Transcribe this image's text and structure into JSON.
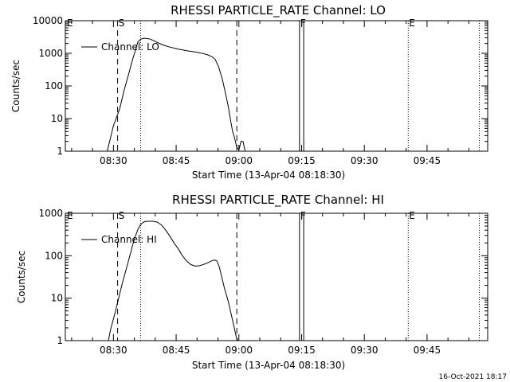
{
  "footer": {
    "timestamp": "16-Oct-2021 18:17"
  },
  "chart_data": [
    {
      "type": "line",
      "title": "RHESSI PARTICLE_RATE Channel: LO",
      "xlabel": "Start Time (13-Apr-04 08:18:30)",
      "ylabel": "Counts/sec",
      "yscale": "log",
      "ylim": [
        1,
        10000
      ],
      "xlim_minutes": [
        0,
        101
      ],
      "x_ticks": [
        {
          "label": "08:30",
          "t": 11.5
        },
        {
          "label": "08:45",
          "t": 26.5
        },
        {
          "label": "09:00",
          "t": 41.5
        },
        {
          "label": "09:15",
          "t": 56.5
        },
        {
          "label": "09:30",
          "t": 71.5
        },
        {
          "label": "09:45",
          "t": 86.5
        }
      ],
      "y_ticks": [
        {
          "label": "1",
          "v": 1
        },
        {
          "label": "10",
          "v": 10
        },
        {
          "label": "100",
          "v": 100
        },
        {
          "label": "1000",
          "v": 1000
        },
        {
          "label": "10000",
          "v": 10000
        }
      ],
      "markers": [
        {
          "label": "E",
          "t": 0.2
        },
        {
          "label": "S",
          "t": 12.5
        },
        {
          "label": "F",
          "t": 56.0
        },
        {
          "label": "E",
          "t": 82.0
        }
      ],
      "dashed_lines": [
        12.5,
        41.0
      ],
      "dotted_lines": [
        18.0,
        82.0,
        99.0
      ],
      "solid_lines": [
        56.0,
        57.0
      ],
      "legend": {
        "label": "Channel: LO",
        "placement": "top-left"
      },
      "series": [
        {
          "name": "Channel: LO",
          "x": [
            10.0,
            10.4,
            11.5,
            13,
            14,
            15,
            16,
            16.8,
            17.3,
            18,
            18.8,
            20,
            21,
            22,
            23,
            24,
            25,
            26,
            27,
            28,
            29,
            30,
            31,
            32,
            33,
            34,
            35,
            35.8,
            36.6,
            37.5,
            38.3,
            39,
            39.5,
            40,
            40.5,
            41,
            41.5,
            42,
            42.5,
            43
          ],
          "y": [
            1,
            1.6,
            6,
            20,
            70,
            200,
            600,
            1300,
            2200,
            2700,
            2900,
            2800,
            2500,
            2150,
            1900,
            1700,
            1550,
            1450,
            1350,
            1280,
            1200,
            1150,
            1100,
            1040,
            980,
            900,
            800,
            660,
            400,
            170,
            60,
            22,
            9,
            4,
            2.5,
            1.3,
            1.1,
            2,
            2,
            1
          ]
        }
      ]
    },
    {
      "type": "line",
      "title": "RHESSI PARTICLE_RATE Channel: HI",
      "xlabel": "Start Time (13-Apr-04 08:18:30)",
      "ylabel": "Counts/sec",
      "yscale": "log",
      "ylim": [
        1,
        1000
      ],
      "xlim_minutes": [
        0,
        101
      ],
      "x_ticks": [
        {
          "label": "08:30",
          "t": 11.5
        },
        {
          "label": "08:45",
          "t": 26.5
        },
        {
          "label": "09:00",
          "t": 41.5
        },
        {
          "label": "09:15",
          "t": 56.5
        },
        {
          "label": "09:30",
          "t": 71.5
        },
        {
          "label": "09:45",
          "t": 86.5
        }
      ],
      "y_ticks": [
        {
          "label": "1",
          "v": 1
        },
        {
          "label": "10",
          "v": 10
        },
        {
          "label": "100",
          "v": 100
        },
        {
          "label": "1000",
          "v": 1000
        }
      ],
      "markers": [
        {
          "label": "E",
          "t": 0.2
        },
        {
          "label": "S",
          "t": 12.5
        },
        {
          "label": "F",
          "t": 56.0
        },
        {
          "label": "E",
          "t": 82.0
        }
      ],
      "dashed_lines": [
        12.5,
        41.0
      ],
      "dotted_lines": [
        18.0,
        82.0,
        99.0
      ],
      "solid_lines": [
        56.0,
        57.0
      ],
      "legend": {
        "label": "Channel: HI",
        "placement": "top-left"
      },
      "series": [
        {
          "name": "Channel: HI",
          "x": [
            10.3,
            10.8,
            12,
            13.5,
            15,
            16.5,
            17.5,
            18.3,
            19,
            20,
            21,
            22,
            23,
            24,
            25,
            26,
            27,
            28,
            29,
            30,
            31,
            32,
            33,
            34,
            35,
            35.7,
            36.2,
            36.8,
            37.3,
            38,
            39,
            40,
            40.5,
            40.9,
            41.3
          ],
          "y": [
            1,
            1.8,
            5,
            20,
            70,
            250,
            450,
            580,
            640,
            650,
            650,
            620,
            530,
            400,
            290,
            200,
            145,
            100,
            75,
            62,
            57,
            58,
            62,
            68,
            76,
            79,
            76,
            55,
            35,
            18,
            8,
            3,
            1.8,
            1.2,
            1
          ]
        }
      ]
    }
  ]
}
